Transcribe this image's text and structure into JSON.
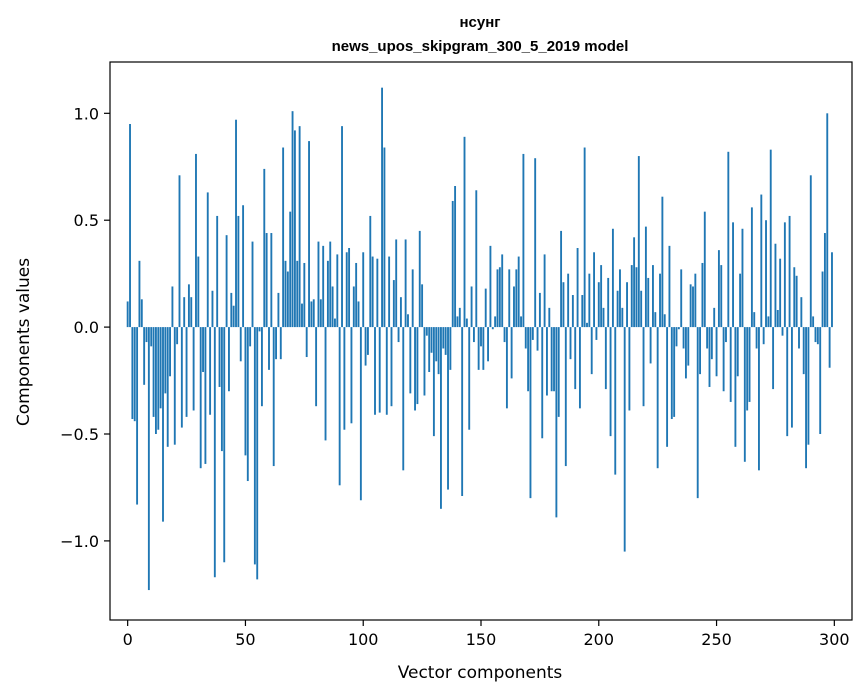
{
  "chart_data": {
    "type": "bar",
    "title": "нсунг",
    "subtitle": "news_upos_skipgram_300_5_2019 model",
    "xlabel": "Vector components",
    "ylabel": "Components values",
    "xlim": [
      -7.5,
      307.5
    ],
    "ylim": [
      -1.37,
      1.24
    ],
    "xticks": [
      0,
      50,
      100,
      150,
      200,
      250,
      300
    ],
    "xtick_labels": [
      "0",
      "50",
      "100",
      "150",
      "200",
      "250",
      "300"
    ],
    "yticks": [
      -1.0,
      -0.5,
      0.0,
      0.5,
      1.0
    ],
    "ytick_labels": [
      "−1.0",
      "−0.5",
      "0.0",
      "0.5",
      "1.0"
    ],
    "grid": false,
    "bar_color": "#1f77b4",
    "x": "0..299",
    "values": [
      0.12,
      0.95,
      -0.43,
      -0.44,
      -0.83,
      0.31,
      0.13,
      -0.27,
      -0.07,
      -1.23,
      -0.09,
      -0.42,
      -0.5,
      -0.48,
      -0.38,
      -0.91,
      -0.31,
      -0.56,
      -0.23,
      0.19,
      -0.55,
      -0.08,
      0.71,
      -0.47,
      0.14,
      -0.42,
      0.2,
      0.14,
      -0.39,
      0.81,
      0.33,
      -0.66,
      -0.21,
      -0.64,
      0.63,
      -0.41,
      0.17,
      -1.17,
      0.52,
      -0.28,
      -0.58,
      -1.1,
      0.43,
      -0.3,
      0.16,
      0.1,
      0.97,
      0.52,
      -0.16,
      0.57,
      -0.6,
      -0.72,
      -0.09,
      0.4,
      -1.11,
      -1.18,
      -0.02,
      -0.37,
      0.74,
      0.44,
      -0.2,
      0.44,
      -0.65,
      -0.15,
      0.16,
      -0.15,
      0.84,
      0.31,
      0.26,
      0.54,
      1.01,
      0.92,
      0.31,
      0.94,
      0.11,
      0.3,
      -0.14,
      0.87,
      0.12,
      0.13,
      -0.37,
      0.4,
      0.13,
      0.38,
      -0.53,
      0.31,
      0.4,
      0.19,
      0.04,
      0.34,
      -0.74,
      0.94,
      -0.48,
      0.35,
      0.37,
      -0.45,
      0.19,
      0.3,
      0.12,
      -0.81,
      0.35,
      -0.18,
      -0.13,
      0.52,
      0.33,
      -0.41,
      0.32,
      -0.4,
      1.12,
      0.84,
      -0.41,
      0.33,
      -0.37,
      0.22,
      0.41,
      -0.07,
      0.14,
      -0.67,
      0.41,
      0.06,
      -0.31,
      0.27,
      -0.39,
      -0.36,
      0.45,
      0.2,
      -0.32,
      -0.04,
      -0.21,
      -0.12,
      -0.51,
      -0.16,
      -0.22,
      -0.85,
      -0.1,
      -0.13,
      -0.76,
      -0.2,
      0.59,
      0.66,
      0.05,
      0.09,
      -0.79,
      0.89,
      0.04,
      -0.48,
      0.19,
      -0.07,
      0.64,
      -0.2,
      -0.09,
      -0.2,
      0.18,
      -0.16,
      0.38,
      -0.01,
      0.05,
      0.27,
      0.28,
      0.34,
      -0.07,
      -0.38,
      0.27,
      -0.24,
      0.19,
      0.27,
      0.33,
      0.05,
      0.81,
      -0.1,
      -0.3,
      -0.8,
      -0.06,
      0.79,
      -0.11,
      0.16,
      -0.52,
      0.34,
      -0.32,
      0.09,
      -0.3,
      -0.3,
      -0.89,
      -0.42,
      0.45,
      0.21,
      -0.65,
      0.25,
      -0.15,
      0.15,
      -0.29,
      0.37,
      -0.38,
      0.15,
      0.84,
      0.02,
      0.25,
      -0.22,
      0.35,
      -0.06,
      0.21,
      0.29,
      0.09,
      -0.29,
      0.23,
      -0.51,
      0.46,
      -0.69,
      0.17,
      0.27,
      0.09,
      -1.05,
      0.21,
      -0.39,
      0.29,
      0.42,
      0.28,
      0.8,
      0.17,
      -0.37,
      0.47,
      0.23,
      -0.17,
      0.29,
      0.07,
      -0.66,
      0.25,
      0.61,
      0.06,
      -0.56,
      0.38,
      -0.43,
      -0.42,
      -0.09,
      -0.01,
      0.27,
      -0.1,
      -0.24,
      -0.18,
      0.2,
      0.19,
      0.25,
      -0.8,
      -0.22,
      0.3,
      0.54,
      -0.1,
      -0.28,
      -0.15,
      0.09,
      -0.23,
      0.36,
      0.29,
      -0.3,
      -0.07,
      0.82,
      -0.35,
      0.49,
      -0.56,
      -0.23,
      0.25,
      0.46,
      -0.63,
      -0.39,
      -0.35,
      0.56,
      0.07,
      -0.1,
      -0.67,
      0.62,
      -0.08,
      0.5,
      0.05,
      0.83,
      -0.29,
      0.39,
      0.08,
      0.32,
      -0.04,
      0.49,
      -0.51,
      0.52,
      -0.47,
      0.28,
      0.24,
      -0.1,
      0.14,
      -0.22,
      -0.66,
      -0.55,
      0.71,
      0.05,
      -0.07,
      -0.08,
      -0.5,
      0.26,
      0.44,
      1.0,
      -0.19,
      0.35
    ]
  }
}
